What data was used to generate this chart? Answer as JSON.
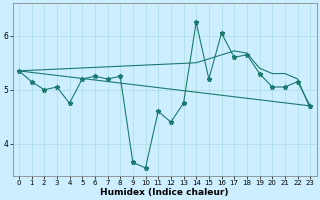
{
  "xlabel": "Humidex (Indice chaleur)",
  "bg_color": "#cceeff",
  "grid_color": "#aadddd",
  "line_color": "#1a7a6e",
  "xlim": [
    -0.5,
    23.5
  ],
  "ylim": [
    3.4,
    6.6
  ],
  "xticks": [
    0,
    1,
    2,
    3,
    4,
    5,
    6,
    7,
    8,
    9,
    10,
    11,
    12,
    13,
    14,
    15,
    16,
    17,
    18,
    19,
    20,
    21,
    22,
    23
  ],
  "yticks": [
    4,
    5,
    6
  ],
  "series1_x": [
    0,
    1,
    2,
    3,
    4,
    5,
    6,
    7,
    8,
    9,
    10,
    11,
    12,
    13,
    14,
    15,
    16,
    17,
    18,
    19,
    20,
    21,
    22,
    23
  ],
  "series1_y": [
    5.35,
    5.15,
    5.0,
    5.05,
    4.75,
    5.2,
    5.25,
    5.2,
    5.25,
    3.65,
    3.55,
    4.6,
    4.4,
    4.75,
    6.25,
    5.2,
    6.05,
    5.6,
    5.65,
    5.3,
    5.05,
    5.05,
    5.15,
    4.7
  ],
  "series2_x": [
    0,
    23
  ],
  "series2_y": [
    5.35,
    4.7
  ],
  "series3_x": [
    0,
    14,
    17,
    18,
    19,
    20,
    21,
    22,
    23
  ],
  "series3_y": [
    5.35,
    5.5,
    5.72,
    5.68,
    5.4,
    5.3,
    5.3,
    5.2,
    4.65
  ],
  "figsize": [
    3.2,
    2.0
  ],
  "dpi": 100
}
